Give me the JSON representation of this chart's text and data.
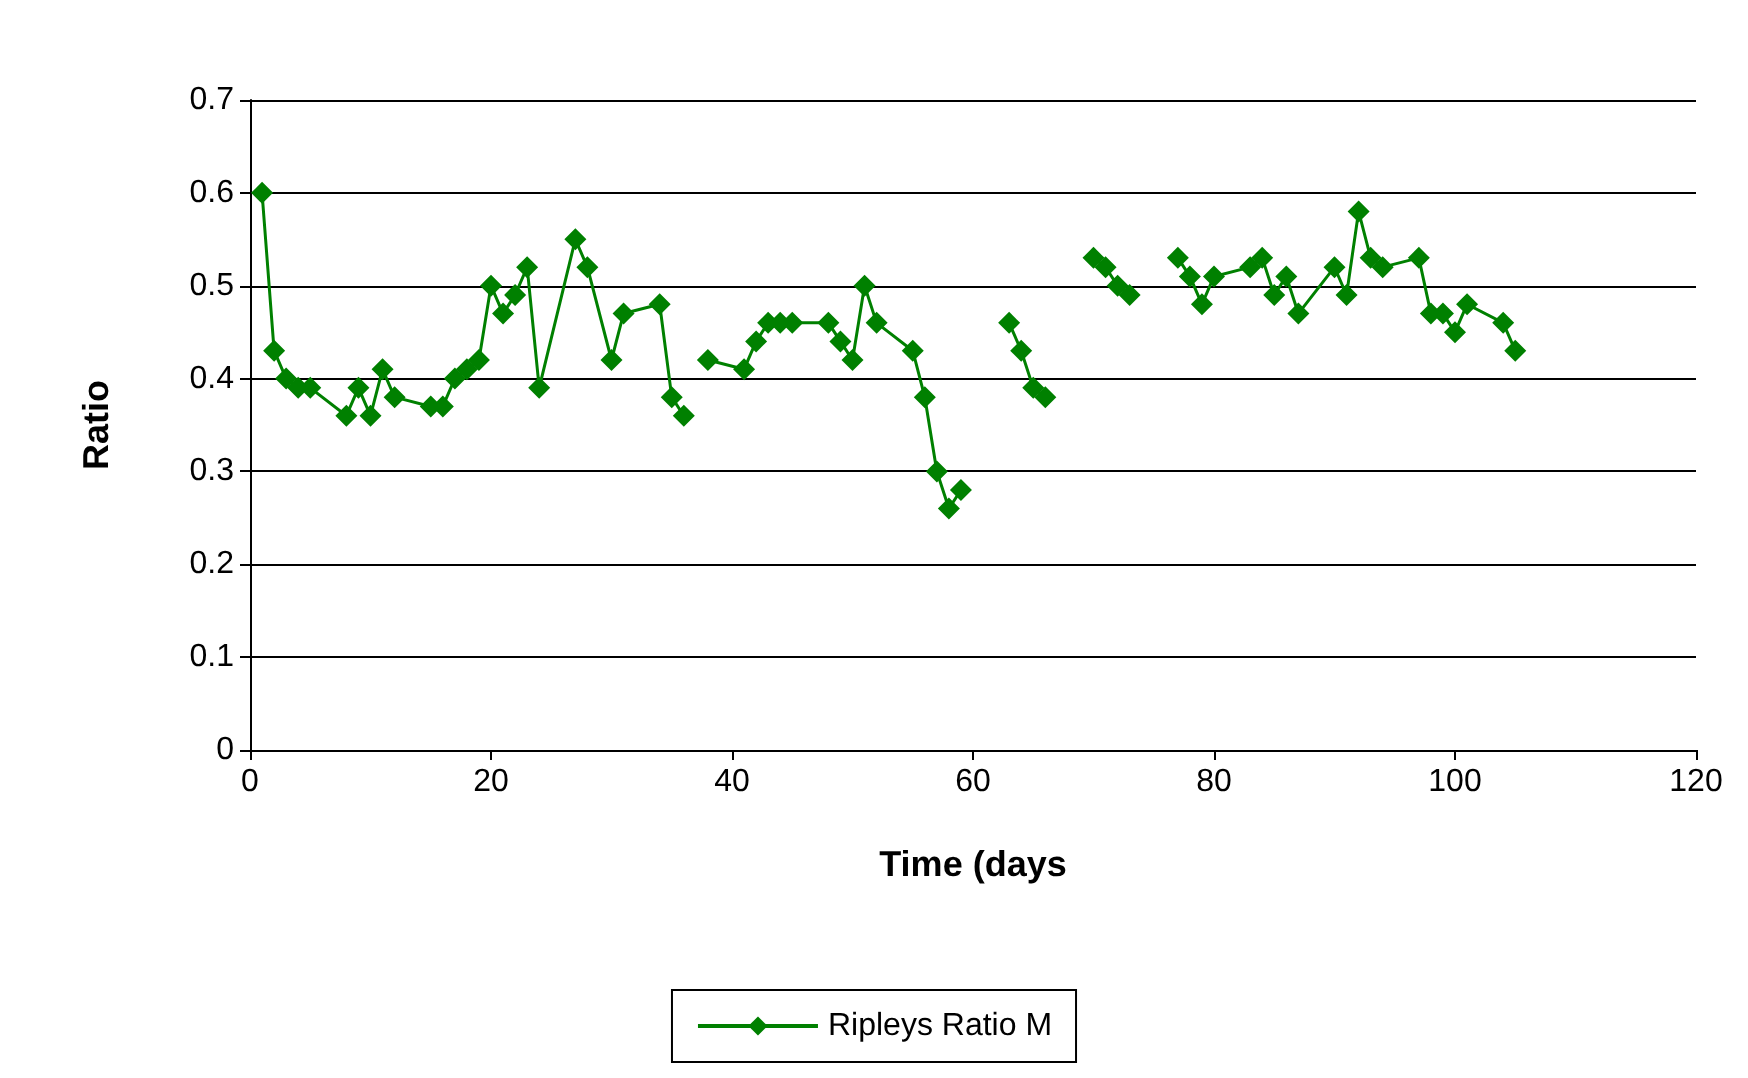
{
  "chart_data": {
    "type": "line",
    "xlabel": "Time (days",
    "ylabel": "Ratio",
    "x": [
      1,
      2,
      3,
      4,
      5,
      8,
      9,
      10,
      11,
      12,
      15,
      16,
      17,
      18,
      19,
      20,
      21,
      22,
      23,
      24,
      27,
      28,
      30,
      31,
      34,
      35,
      36,
      37,
      38,
      41,
      42,
      43,
      44,
      45,
      48,
      49,
      50,
      51,
      52,
      55,
      56,
      57,
      58,
      59,
      61,
      63,
      64,
      65,
      66,
      68,
      70,
      71,
      72,
      73,
      75,
      77,
      78,
      79,
      80,
      83,
      84,
      85,
      86,
      87,
      90,
      91,
      92,
      93,
      94,
      97,
      98,
      99,
      100,
      101,
      104,
      105
    ],
    "series": [
      {
        "name": "Ripleys Ratio M",
        "color": "#008000",
        "values": [
          0.6,
          0.43,
          0.4,
          0.39,
          0.39,
          0.36,
          0.39,
          0.36,
          0.41,
          0.38,
          0.37,
          0.37,
          0.4,
          0.41,
          0.42,
          0.5,
          0.47,
          0.49,
          0.52,
          0.39,
          0.55,
          0.52,
          0.42,
          0.47,
          0.48,
          0.38,
          0.36,
          null,
          0.42,
          0.41,
          0.44,
          0.46,
          0.46,
          0.46,
          0.46,
          0.44,
          0.42,
          0.5,
          0.46,
          0.43,
          0.38,
          0.3,
          0.26,
          0.28,
          null,
          0.46,
          0.43,
          0.39,
          0.38,
          null,
          0.53,
          0.52,
          0.5,
          0.49,
          null,
          0.53,
          0.51,
          0.48,
          0.51,
          0.52,
          0.53,
          0.49,
          0.51,
          0.47,
          0.52,
          0.49,
          0.58,
          0.53,
          0.52,
          0.53,
          0.47,
          0.47,
          0.45,
          0.48,
          0.46,
          0.43
        ]
      }
    ],
    "xlim": [
      0,
      120
    ],
    "xticks": [
      0,
      20,
      40,
      60,
      80,
      100,
      120
    ],
    "ylim": [
      0,
      0.7
    ],
    "yticks": [
      0,
      0.1,
      0.2,
      0.3,
      0.4,
      0.5,
      0.6,
      0.7
    ],
    "grid": "y",
    "legend": "bottom",
    "marker": "diamond",
    "line_style": "solid"
  }
}
